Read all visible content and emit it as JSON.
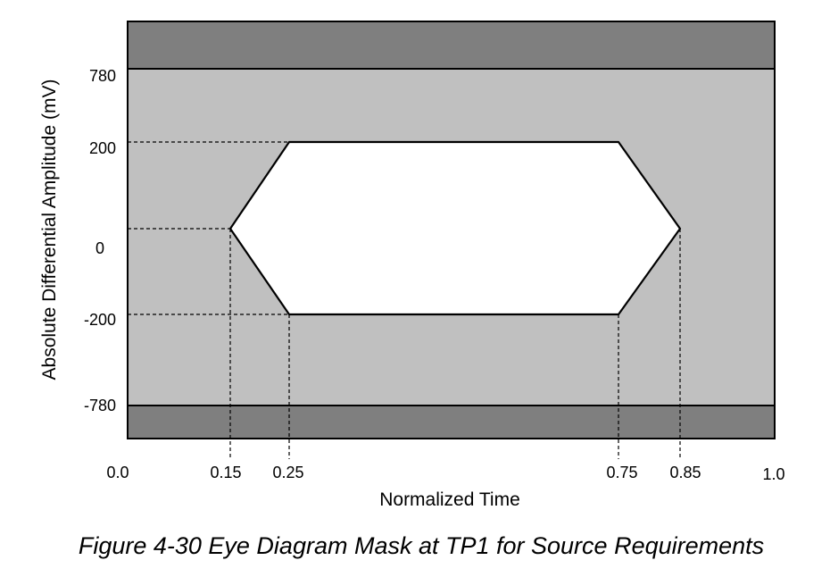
{
  "figure": {
    "caption": "Figure 4-30 Eye Diagram Mask at TP1 for Source Requirements",
    "xlabel": "Normalized Time",
    "ylabel": "Absolute Differential Amplitude (mV)",
    "x_ticks": [
      "0.0",
      "0.15",
      "0.25",
      "0.75",
      "0.85",
      "1.0"
    ],
    "y_ticks": [
      "780",
      "200",
      "0",
      "-200",
      "-780"
    ]
  },
  "mask": {
    "time_points": [
      0.0,
      0.15,
      0.25,
      0.75,
      0.85,
      1.0
    ],
    "amplitude_levels_mv": [
      780,
      200,
      0,
      -200,
      -780
    ],
    "eye_polygon": [
      {
        "t": 0.15,
        "v": 0
      },
      {
        "t": 0.25,
        "v": 200
      },
      {
        "t": 0.75,
        "v": 200
      },
      {
        "t": 0.85,
        "v": 0
      },
      {
        "t": 0.75,
        "v": -200
      },
      {
        "t": 0.25,
        "v": -200
      }
    ],
    "max_limit_mv": 780,
    "min_limit_mv": -780
  },
  "colors": {
    "outer_region": "#7f7f7f",
    "mask_region": "#c0c0c0",
    "eye_opening": "#ffffff",
    "lines": "#000000"
  }
}
